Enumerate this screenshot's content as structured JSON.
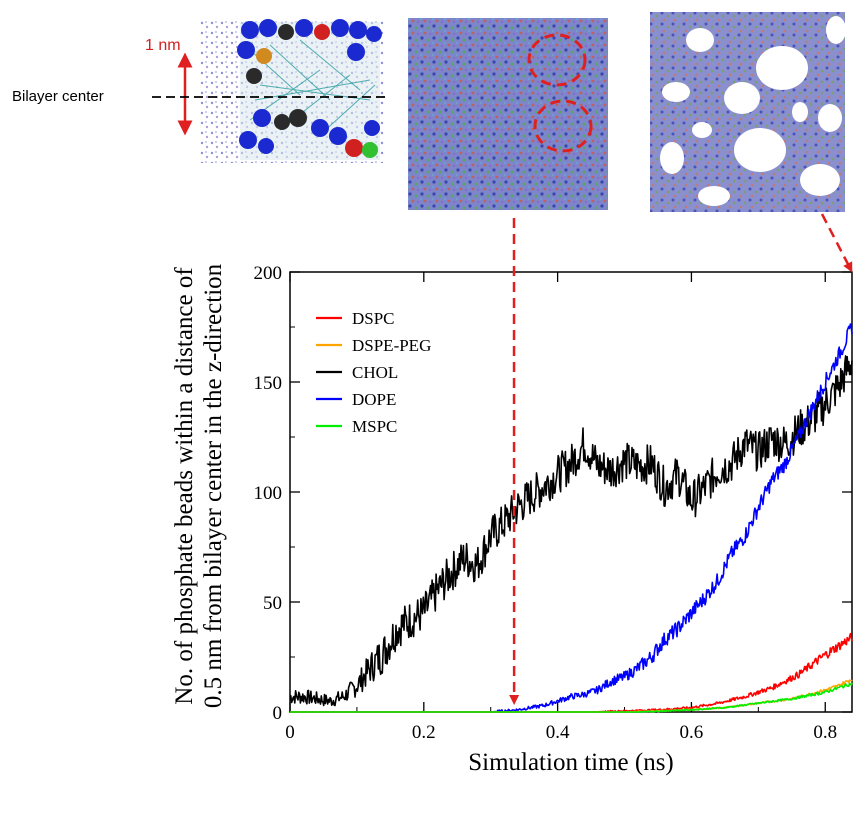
{
  "figure": {
    "inset_labels": {
      "scale": "1 nm",
      "bilayer_center": "Bilayer center"
    }
  },
  "chart_data": {
    "type": "line",
    "title": "",
    "xlabel": "Simulation time (ns)",
    "ylabel_line1": "No. of phosphate beads within a distance of",
    "ylabel_line2": "0.5 nm from bilayer center in the z-direction",
    "xlim": [
      0,
      0.84
    ],
    "ylim": [
      0,
      200
    ],
    "xticks": [
      0,
      0.2,
      0.4,
      0.6,
      0.8
    ],
    "xtick_labels": [
      "0",
      "0.2",
      "0.4",
      "0.6",
      "0.8"
    ],
    "yticks": [
      0,
      50,
      100,
      150,
      200
    ],
    "ytick_labels": [
      "0",
      "50",
      "100",
      "150",
      "200"
    ],
    "legend_position": "top-left",
    "arrow_markers": [
      0.335,
      0.84
    ],
    "series": [
      {
        "name": "DSPC",
        "color": "#ff0000",
        "points": [
          [
            0,
            0
          ],
          [
            0.45,
            0
          ],
          [
            0.5,
            0.5
          ],
          [
            0.55,
            1
          ],
          [
            0.6,
            2
          ],
          [
            0.64,
            4
          ],
          [
            0.68,
            7
          ],
          [
            0.72,
            11
          ],
          [
            0.76,
            17
          ],
          [
            0.8,
            26
          ],
          [
            0.82,
            30
          ],
          [
            0.84,
            34
          ]
        ]
      },
      {
        "name": "DSPE-PEG",
        "color": "#ffa500",
        "points": [
          [
            0,
            0
          ],
          [
            0.5,
            0
          ],
          [
            0.55,
            0.5
          ],
          [
            0.6,
            1
          ],
          [
            0.65,
            2
          ],
          [
            0.7,
            4
          ],
          [
            0.75,
            6
          ],
          [
            0.8,
            10
          ],
          [
            0.82,
            12
          ],
          [
            0.84,
            15
          ]
        ]
      },
      {
        "name": "CHOL",
        "color": "#000000",
        "points": [
          [
            0,
            7
          ],
          [
            0.02,
            7
          ],
          [
            0.04,
            6
          ],
          [
            0.06,
            5
          ],
          [
            0.08,
            7
          ],
          [
            0.1,
            12
          ],
          [
            0.12,
            20
          ],
          [
            0.14,
            27
          ],
          [
            0.16,
            38
          ],
          [
            0.18,
            42
          ],
          [
            0.2,
            45
          ],
          [
            0.22,
            55
          ],
          [
            0.24,
            63
          ],
          [
            0.26,
            70
          ],
          [
            0.28,
            67
          ],
          [
            0.3,
            80
          ],
          [
            0.32,
            86
          ],
          [
            0.34,
            93
          ],
          [
            0.36,
            98
          ],
          [
            0.38,
            103
          ],
          [
            0.4,
            108
          ],
          [
            0.42,
            113
          ],
          [
            0.44,
            122
          ],
          [
            0.46,
            112
          ],
          [
            0.48,
            110
          ],
          [
            0.5,
            114
          ],
          [
            0.52,
            112
          ],
          [
            0.54,
            113
          ],
          [
            0.56,
            102
          ],
          [
            0.58,
            108
          ],
          [
            0.6,
            96
          ],
          [
            0.62,
            102
          ],
          [
            0.64,
            110
          ],
          [
            0.66,
            113
          ],
          [
            0.68,
            122
          ],
          [
            0.7,
            118
          ],
          [
            0.72,
            124
          ],
          [
            0.74,
            122
          ],
          [
            0.76,
            128
          ],
          [
            0.78,
            133
          ],
          [
            0.8,
            140
          ],
          [
            0.82,
            148
          ],
          [
            0.84,
            160
          ]
        ]
      },
      {
        "name": "DOPE",
        "color": "#0000ff",
        "points": [
          [
            0,
            0
          ],
          [
            0.3,
            0
          ],
          [
            0.32,
            0.5
          ],
          [
            0.34,
            1
          ],
          [
            0.36,
            2
          ],
          [
            0.38,
            3
          ],
          [
            0.4,
            5
          ],
          [
            0.42,
            7
          ],
          [
            0.44,
            8
          ],
          [
            0.46,
            10
          ],
          [
            0.48,
            14
          ],
          [
            0.5,
            16
          ],
          [
            0.52,
            20
          ],
          [
            0.54,
            25
          ],
          [
            0.56,
            33
          ],
          [
            0.58,
            38
          ],
          [
            0.6,
            45
          ],
          [
            0.62,
            52
          ],
          [
            0.64,
            60
          ],
          [
            0.66,
            72
          ],
          [
            0.68,
            80
          ],
          [
            0.7,
            93
          ],
          [
            0.72,
            105
          ],
          [
            0.74,
            113
          ],
          [
            0.76,
            125
          ],
          [
            0.78,
            138
          ],
          [
            0.8,
            150
          ],
          [
            0.82,
            162
          ],
          [
            0.84,
            175
          ]
        ]
      },
      {
        "name": "MSPC",
        "color": "#00ee00",
        "points": [
          [
            0,
            0
          ],
          [
            0.52,
            0
          ],
          [
            0.56,
            0.5
          ],
          [
            0.6,
            1
          ],
          [
            0.65,
            2
          ],
          [
            0.7,
            4
          ],
          [
            0.75,
            6
          ],
          [
            0.8,
            9
          ],
          [
            0.82,
            11
          ],
          [
            0.84,
            13
          ]
        ]
      }
    ]
  }
}
